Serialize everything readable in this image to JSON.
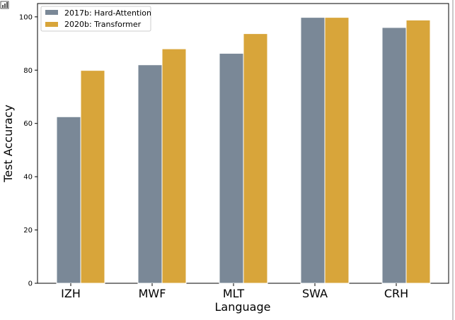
{
  "chart_data": {
    "type": "bar",
    "title": "",
    "xlabel": "Language",
    "ylabel": "Test Accuracy",
    "categories": [
      "IZH",
      "MWF",
      "MLT",
      "SWA",
      "CRH"
    ],
    "series": [
      {
        "name": "2017b: Hard-Attention",
        "color": "#7a8897",
        "values": [
          62.5,
          82.0,
          86.3,
          99.8,
          96.0
        ]
      },
      {
        "name": "2020b: Transformer",
        "color": "#d8a53a",
        "values": [
          79.9,
          88.0,
          93.7,
          99.8,
          98.8
        ]
      }
    ],
    "ylim": [
      0,
      105
    ],
    "yticks": [
      0,
      20,
      40,
      60,
      80,
      100
    ],
    "grid": false,
    "legend_position": "top-left"
  },
  "toolbar": {
    "icon": "chart-icon"
  }
}
